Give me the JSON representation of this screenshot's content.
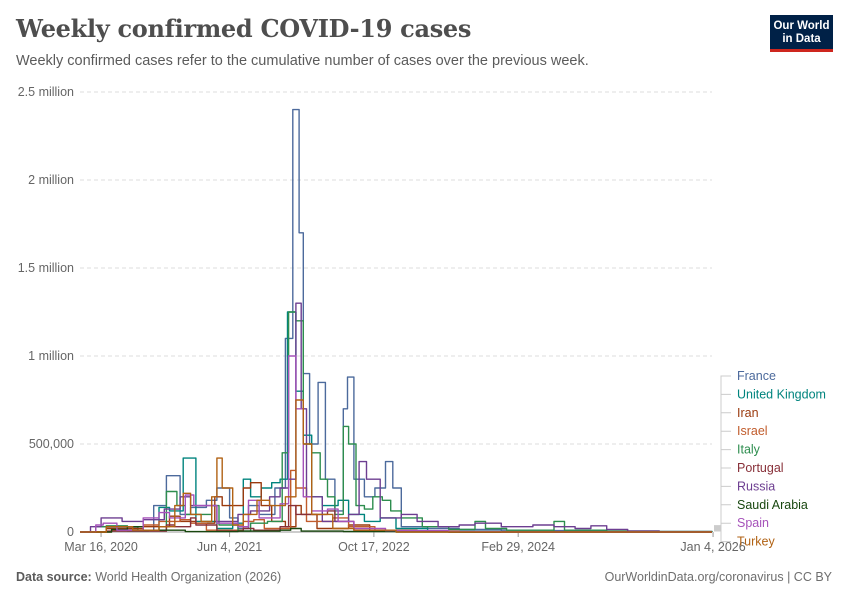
{
  "header": {
    "title": "Weekly confirmed COVID-19 cases",
    "subtitle": "Weekly confirmed cases refer to the cumulative number of cases over the previous week.",
    "logo_line1": "Our World",
    "logo_line2": "in Data"
  },
  "footer": {
    "source_label": "Data source:",
    "source_text": "World Health Organization (2026)",
    "right_text": "OurWorldinData.org/coronavirus | CC BY"
  },
  "chart_data": {
    "type": "line",
    "title": "Weekly confirmed COVID-19 cases",
    "ylabel": "",
    "ylim": [
      0,
      2500000
    ],
    "y_ticks": [
      {
        "value": 0,
        "label": "0"
      },
      {
        "value": 500000,
        "label": "500,000"
      },
      {
        "value": 1000000,
        "label": "1 million"
      },
      {
        "value": 1500000,
        "label": "1.5 million"
      },
      {
        "value": 2000000,
        "label": "2 million"
      },
      {
        "value": 2500000,
        "label": "2.5 million"
      }
    ],
    "x_range": [
      2020.0,
      2026.0
    ],
    "x_ticks": [
      {
        "value": 2020.2,
        "label": "Mar 16, 2020"
      },
      {
        "value": 2021.42,
        "label": "Jun 4, 2021"
      },
      {
        "value": 2022.79,
        "label": "Oct 17, 2022"
      },
      {
        "value": 2024.16,
        "label": "Feb 29, 2024"
      },
      {
        "value": 2026.01,
        "label": "Jan 4, 2026"
      }
    ],
    "grid": true,
    "legend_position": "right",
    "series": [
      {
        "name": "France",
        "color": "#4c6a9c",
        "points": [
          [
            2020.0,
            0
          ],
          [
            2020.15,
            30000
          ],
          [
            2020.25,
            20000
          ],
          [
            2020.55,
            10000
          ],
          [
            2020.7,
            150000
          ],
          [
            2020.82,
            320000
          ],
          [
            2020.95,
            100000
          ],
          [
            2021.05,
            140000
          ],
          [
            2021.2,
            180000
          ],
          [
            2021.3,
            250000
          ],
          [
            2021.42,
            80000
          ],
          [
            2021.5,
            20000
          ],
          [
            2021.6,
            150000
          ],
          [
            2021.7,
            100000
          ],
          [
            2021.85,
            250000
          ],
          [
            2021.95,
            1100000
          ],
          [
            2022.02,
            2400000
          ],
          [
            2022.08,
            1700000
          ],
          [
            2022.12,
            900000
          ],
          [
            2022.18,
            500000
          ],
          [
            2022.26,
            850000
          ],
          [
            2022.33,
            300000
          ],
          [
            2022.42,
            120000
          ],
          [
            2022.5,
            700000
          ],
          [
            2022.54,
            880000
          ],
          [
            2022.6,
            300000
          ],
          [
            2022.7,
            200000
          ],
          [
            2022.8,
            250000
          ],
          [
            2022.9,
            400000
          ],
          [
            2022.97,
            250000
          ],
          [
            2023.05,
            30000
          ],
          [
            2023.3,
            20000
          ],
          [
            2023.6,
            15000
          ],
          [
            2024.0,
            10000
          ],
          [
            2024.5,
            8000
          ],
          [
            2025.0,
            5000
          ],
          [
            2025.5,
            3000
          ],
          [
            2026.0,
            0
          ]
        ]
      },
      {
        "name": "United Kingdom",
        "color": "#00847e",
        "points": [
          [
            2020.0,
            0
          ],
          [
            2020.25,
            30000
          ],
          [
            2020.55,
            8000
          ],
          [
            2020.75,
            140000
          ],
          [
            2020.85,
            120000
          ],
          [
            2020.98,
            420000
          ],
          [
            2021.1,
            60000
          ],
          [
            2021.3,
            20000
          ],
          [
            2021.45,
            50000
          ],
          [
            2021.55,
            300000
          ],
          [
            2021.62,
            200000
          ],
          [
            2021.72,
            250000
          ],
          [
            2021.82,
            280000
          ],
          [
            2021.9,
            300000
          ],
          [
            2021.97,
            1250000
          ],
          [
            2022.05,
            800000
          ],
          [
            2022.12,
            550000
          ],
          [
            2022.2,
            200000
          ],
          [
            2022.3,
            150000
          ],
          [
            2022.45,
            180000
          ],
          [
            2022.55,
            100000
          ],
          [
            2022.7,
            60000
          ],
          [
            2022.85,
            80000
          ],
          [
            2023.0,
            20000
          ],
          [
            2023.3,
            5000
          ],
          [
            2024.0,
            0
          ],
          [
            2026.0,
            0
          ]
        ]
      },
      {
        "name": "Iran",
        "color": "#9a3a0e",
        "points": [
          [
            2020.0,
            0
          ],
          [
            2020.25,
            20000
          ],
          [
            2020.6,
            30000
          ],
          [
            2020.85,
            90000
          ],
          [
            2020.95,
            60000
          ],
          [
            2021.1,
            50000
          ],
          [
            2021.28,
            200000
          ],
          [
            2021.35,
            150000
          ],
          [
            2021.55,
            250000
          ],
          [
            2021.62,
            280000
          ],
          [
            2021.72,
            150000
          ],
          [
            2021.82,
            60000
          ],
          [
            2021.95,
            30000
          ],
          [
            2022.05,
            150000
          ],
          [
            2022.1,
            100000
          ],
          [
            2022.25,
            20000
          ],
          [
            2022.55,
            40000
          ],
          [
            2022.75,
            10000
          ],
          [
            2023.0,
            5000
          ],
          [
            2023.5,
            0
          ],
          [
            2026.0,
            0
          ]
        ]
      },
      {
        "name": "Israel",
        "color": "#c15c2c",
        "points": [
          [
            2020.0,
            0
          ],
          [
            2020.3,
            8000
          ],
          [
            2020.6,
            40000
          ],
          [
            2020.75,
            60000
          ],
          [
            2020.95,
            70000
          ],
          [
            2021.05,
            50000
          ],
          [
            2021.2,
            10000
          ],
          [
            2021.55,
            60000
          ],
          [
            2021.65,
            70000
          ],
          [
            2021.75,
            20000
          ],
          [
            2022.0,
            350000
          ],
          [
            2022.05,
            250000
          ],
          [
            2022.15,
            60000
          ],
          [
            2022.4,
            80000
          ],
          [
            2022.55,
            30000
          ],
          [
            2022.8,
            10000
          ],
          [
            2023.2,
            5000
          ],
          [
            2023.6,
            0
          ],
          [
            2026.0,
            0
          ]
        ]
      },
      {
        "name": "Italy",
        "color": "#2d8d4e",
        "points": [
          [
            2020.0,
            0
          ],
          [
            2020.15,
            30000
          ],
          [
            2020.25,
            35000
          ],
          [
            2020.45,
            5000
          ],
          [
            2020.65,
            10000
          ],
          [
            2020.82,
            230000
          ],
          [
            2020.92,
            150000
          ],
          [
            2021.0,
            100000
          ],
          [
            2021.15,
            100000
          ],
          [
            2021.25,
            150000
          ],
          [
            2021.32,
            40000
          ],
          [
            2021.5,
            5000
          ],
          [
            2021.62,
            50000
          ],
          [
            2021.78,
            60000
          ],
          [
            2021.92,
            450000
          ],
          [
            2021.98,
            1250000
          ],
          [
            2022.05,
            1200000
          ],
          [
            2022.12,
            500000
          ],
          [
            2022.2,
            450000
          ],
          [
            2022.28,
            300000
          ],
          [
            2022.35,
            200000
          ],
          [
            2022.42,
            100000
          ],
          [
            2022.5,
            600000
          ],
          [
            2022.55,
            500000
          ],
          [
            2022.62,
            150000
          ],
          [
            2022.7,
            130000
          ],
          [
            2022.78,
            200000
          ],
          [
            2022.87,
            180000
          ],
          [
            2022.95,
            120000
          ],
          [
            2023.05,
            80000
          ],
          [
            2023.25,
            30000
          ],
          [
            2023.5,
            15000
          ],
          [
            2023.75,
            60000
          ],
          [
            2023.85,
            20000
          ],
          [
            2024.05,
            10000
          ],
          [
            2024.5,
            60000
          ],
          [
            2024.6,
            10000
          ],
          [
            2025.0,
            5000
          ],
          [
            2025.5,
            2000
          ],
          [
            2026.0,
            0
          ]
        ]
      },
      {
        "name": "Portugal",
        "color": "#883039",
        "points": [
          [
            2020.0,
            0
          ],
          [
            2020.25,
            5000
          ],
          [
            2020.5,
            5000
          ],
          [
            2020.82,
            40000
          ],
          [
            2020.9,
            30000
          ],
          [
            2021.05,
            80000
          ],
          [
            2021.1,
            40000
          ],
          [
            2021.3,
            5000
          ],
          [
            2021.55,
            20000
          ],
          [
            2021.65,
            10000
          ],
          [
            2021.9,
            30000
          ],
          [
            2021.98,
            150000
          ],
          [
            2022.05,
            100000
          ],
          [
            2022.35,
            120000
          ],
          [
            2022.42,
            60000
          ],
          [
            2022.6,
            10000
          ],
          [
            2023.0,
            5000
          ],
          [
            2023.5,
            0
          ],
          [
            2026.0,
            0
          ]
        ]
      },
      {
        "name": "Russia",
        "color": "#6d3e91",
        "points": [
          [
            2020.0,
            0
          ],
          [
            2020.1,
            30000
          ],
          [
            2020.2,
            80000
          ],
          [
            2020.4,
            60000
          ],
          [
            2020.6,
            70000
          ],
          [
            2020.8,
            130000
          ],
          [
            2020.95,
            200000
          ],
          [
            2021.05,
            150000
          ],
          [
            2021.3,
            60000
          ],
          [
            2021.5,
            100000
          ],
          [
            2021.62,
            120000
          ],
          [
            2021.8,
            200000
          ],
          [
            2021.9,
            250000
          ],
          [
            2021.98,
            300000
          ],
          [
            2022.05,
            1300000
          ],
          [
            2022.1,
            700000
          ],
          [
            2022.15,
            200000
          ],
          [
            2022.3,
            60000
          ],
          [
            2022.55,
            100000
          ],
          [
            2022.65,
            400000
          ],
          [
            2022.72,
            300000
          ],
          [
            2022.85,
            80000
          ],
          [
            2022.95,
            80000
          ],
          [
            2023.05,
            100000
          ],
          [
            2023.2,
            60000
          ],
          [
            2023.4,
            30000
          ],
          [
            2023.6,
            40000
          ],
          [
            2023.75,
            50000
          ],
          [
            2024.0,
            30000
          ],
          [
            2024.3,
            40000
          ],
          [
            2024.5,
            30000
          ],
          [
            2024.7,
            20000
          ],
          [
            2024.85,
            35000
          ],
          [
            2025.0,
            15000
          ],
          [
            2025.2,
            5000
          ],
          [
            2025.5,
            0
          ],
          [
            2026.0,
            0
          ]
        ]
      },
      {
        "name": "Saudi Arabia",
        "color": "#18470f",
        "points": [
          [
            2020.0,
            0
          ],
          [
            2020.3,
            15000
          ],
          [
            2020.45,
            30000
          ],
          [
            2020.6,
            10000
          ],
          [
            2021.0,
            2000
          ],
          [
            2021.5,
            5000
          ],
          [
            2021.9,
            10000
          ],
          [
            2022.0,
            20000
          ],
          [
            2022.1,
            5000
          ],
          [
            2022.5,
            3000
          ],
          [
            2023.0,
            0
          ],
          [
            2026.0,
            0
          ]
        ]
      },
      {
        "name": "Spain",
        "color": "#a652ba",
        "points": [
          [
            2020.0,
            0
          ],
          [
            2020.15,
            40000
          ],
          [
            2020.22,
            50000
          ],
          [
            2020.35,
            10000
          ],
          [
            2020.6,
            80000
          ],
          [
            2020.75,
            110000
          ],
          [
            2020.85,
            80000
          ],
          [
            2021.0,
            210000
          ],
          [
            2021.08,
            150000
          ],
          [
            2021.3,
            50000
          ],
          [
            2021.5,
            30000
          ],
          [
            2021.6,
            180000
          ],
          [
            2021.7,
            80000
          ],
          [
            2021.9,
            160000
          ],
          [
            2021.98,
            1000000
          ],
          [
            2022.05,
            700000
          ],
          [
            2022.12,
            200000
          ],
          [
            2022.2,
            120000
          ],
          [
            2022.35,
            130000
          ],
          [
            2022.45,
            60000
          ],
          [
            2022.6,
            20000
          ],
          [
            2022.9,
            8000
          ],
          [
            2023.5,
            3000
          ],
          [
            2024.0,
            0
          ],
          [
            2026.0,
            0
          ]
        ]
      },
      {
        "name": "Turkey",
        "color": "#b16214",
        "points": [
          [
            2020.0,
            0
          ],
          [
            2020.25,
            30000
          ],
          [
            2020.5,
            10000
          ],
          [
            2020.75,
            30000
          ],
          [
            2020.9,
            150000
          ],
          [
            2020.98,
            220000
          ],
          [
            2021.05,
            100000
          ],
          [
            2021.15,
            60000
          ],
          [
            2021.25,
            200000
          ],
          [
            2021.3,
            420000
          ],
          [
            2021.35,
            250000
          ],
          [
            2021.45,
            40000
          ],
          [
            2021.55,
            100000
          ],
          [
            2021.68,
            180000
          ],
          [
            2021.8,
            150000
          ],
          [
            2021.95,
            200000
          ],
          [
            2022.05,
            750000
          ],
          [
            2022.12,
            500000
          ],
          [
            2022.2,
            100000
          ],
          [
            2022.4,
            20000
          ],
          [
            2022.6,
            10000
          ],
          [
            2023.0,
            0
          ],
          [
            2026.0,
            0
          ]
        ]
      }
    ]
  }
}
